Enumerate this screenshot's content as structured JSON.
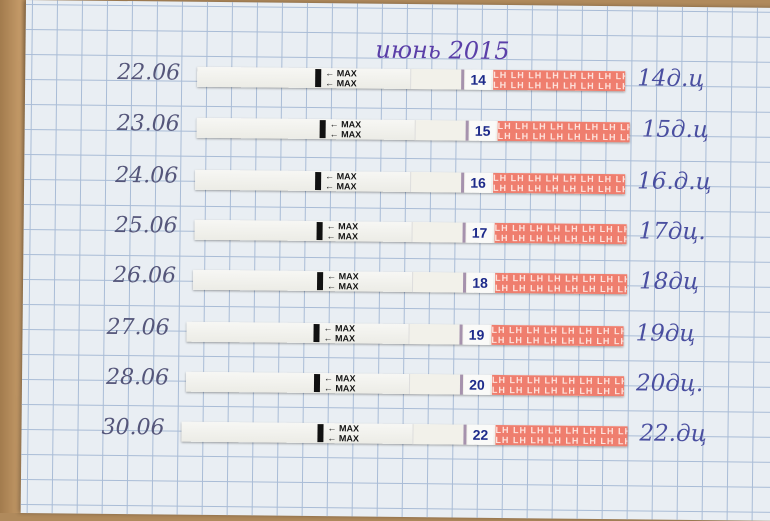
{
  "title": "июнь 2015",
  "strip_text": {
    "max": "← MAX",
    "lh": "LH"
  },
  "colors": {
    "paper": "#e9eef3",
    "grid": "#a9bcd6",
    "ink": "#4a4fa0",
    "strip_pink": "#ef7e6e"
  },
  "rows": [
    {
      "date": "22.06",
      "number": "14",
      "cycle_day": "14д.ц"
    },
    {
      "date": "23.06",
      "number": "15",
      "cycle_day": "15д.ц"
    },
    {
      "date": "24.06",
      "number": "16",
      "cycle_day": "16.д.ц"
    },
    {
      "date": "25.06",
      "number": "17",
      "cycle_day": "17дц."
    },
    {
      "date": "26.06",
      "number": "18",
      "cycle_day": "18дц"
    },
    {
      "date": "27.06",
      "number": "19",
      "cycle_day": "19дц"
    },
    {
      "date": "28.06",
      "number": "20",
      "cycle_day": "20дц."
    },
    {
      "date": "30.06",
      "number": "22",
      "cycle_day": "22.дц"
    }
  ]
}
